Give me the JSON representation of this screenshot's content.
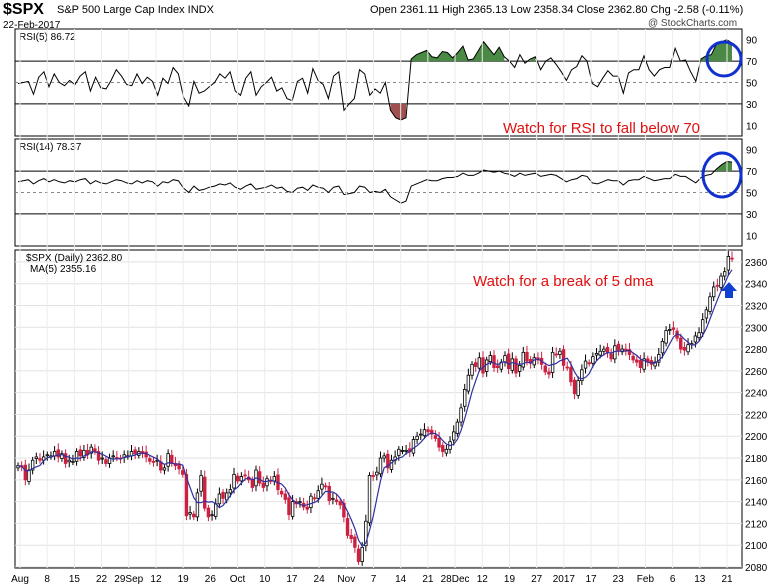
{
  "header": {
    "symbol": "$SPX",
    "description": "S&P 500 Large Cap Index  INDX",
    "date": "22-Feb-2017",
    "quote": "Open 2361.11  High 2365.13  Low 2358.34  Close 2362.80  Chg -2.58 (-0.11%)",
    "watermark": "@ StockCharts.com"
  },
  "colors": {
    "up": "#000000",
    "down": "#cc2040",
    "ma": "#3030a0",
    "annotation": "#e01010",
    "circle": "#1030d0",
    "arrow": "#1040d0",
    "overbought_fill": "#4a8a45",
    "oversold_fill": "#a05050"
  },
  "chart_data": [
    {
      "type": "line",
      "panel": "rsi5",
      "label": "RSI(5) 86.72",
      "ylim": [
        0,
        100
      ],
      "y_ticks": [
        10,
        30,
        50,
        70,
        90
      ],
      "reference_lines": [
        30,
        50,
        70
      ],
      "values": [
        49,
        50,
        51,
        39,
        55,
        60,
        46,
        58,
        50,
        47,
        52,
        48,
        56,
        60,
        42,
        55,
        45,
        44,
        52,
        62,
        56,
        48,
        47,
        58,
        49,
        55,
        51,
        38,
        54,
        49,
        64,
        58,
        36,
        28,
        51,
        40,
        42,
        46,
        50,
        58,
        54,
        60,
        42,
        38,
        54,
        60,
        38,
        46,
        50,
        55,
        42,
        45,
        35,
        33,
        51,
        54,
        40,
        63,
        52,
        48,
        35,
        56,
        60,
        24,
        30,
        35,
        62,
        58,
        38,
        44,
        40,
        50,
        24,
        17,
        15,
        17,
        72,
        76,
        78,
        80,
        74,
        73,
        79,
        78,
        73,
        78,
        84,
        71,
        72,
        80,
        88,
        82,
        76,
        83,
        74,
        70,
        64,
        76,
        68,
        72,
        74,
        62,
        70,
        73,
        67,
        60,
        52,
        62,
        65,
        75,
        70,
        49,
        46,
        54,
        61,
        56,
        56,
        40,
        59,
        62,
        62,
        75,
        62,
        56,
        62,
        64,
        64,
        82,
        70,
        71,
        60,
        51,
        72,
        75,
        76,
        86,
        88,
        90,
        86.72
      ]
    },
    {
      "type": "line",
      "panel": "rsi14",
      "label": "RSI(14) 78.37",
      "ylim": [
        0,
        100
      ],
      "y_ticks": [
        10,
        30,
        50,
        70,
        90
      ],
      "reference_lines": [
        30,
        50,
        70
      ],
      "values": [
        60,
        61,
        62,
        58,
        61,
        63,
        60,
        62,
        60,
        59,
        61,
        60,
        62,
        63,
        58,
        61,
        59,
        58,
        60,
        62,
        61,
        59,
        58,
        61,
        59,
        61,
        60,
        56,
        60,
        59,
        62,
        61,
        54,
        50,
        56,
        52,
        53,
        55,
        56,
        58,
        57,
        59,
        55,
        53,
        56,
        58,
        53,
        54,
        55,
        57,
        54,
        55,
        51,
        50,
        54,
        55,
        52,
        57,
        55,
        54,
        50,
        55,
        56,
        48,
        49,
        50,
        56,
        55,
        50,
        51,
        50,
        53,
        46,
        43,
        40,
        42,
        56,
        58,
        60,
        62,
        61,
        61,
        63,
        64,
        64,
        65,
        68,
        66,
        66,
        68,
        71,
        70,
        69,
        70,
        68,
        67,
        65,
        68,
        66,
        67,
        68,
        65,
        66,
        67,
        66,
        63,
        60,
        62,
        63,
        66,
        65,
        59,
        58,
        60,
        62,
        61,
        61,
        57,
        61,
        62,
        62,
        65,
        63,
        61,
        62,
        63,
        63,
        67,
        65,
        65,
        62,
        59,
        64,
        66,
        67,
        72,
        76,
        79,
        78.37
      ]
    },
    {
      "type": "candlestick",
      "panel": "price",
      "label": "$SPX (Daily) 2362.80",
      "ma_label": "MA(5) 2355.16",
      "ylim": [
        2080,
        2370
      ],
      "y_ticks": [
        2080,
        2100,
        2120,
        2140,
        2160,
        2180,
        2200,
        2220,
        2240,
        2260,
        2280,
        2300,
        2320,
        2340,
        2360
      ],
      "x_ticks": [
        "Aug",
        "8",
        "15",
        "22",
        "29Sep",
        "12",
        "19",
        "26",
        "Oct",
        "10",
        "17",
        "24",
        "Nov",
        "7",
        "14",
        "21",
        "28Dec",
        "12",
        "19",
        "27",
        "2017",
        "17",
        "23",
        "Feb",
        "6",
        "13",
        "21"
      ],
      "close": [
        2173,
        2172,
        2160,
        2169,
        2178,
        2181,
        2178,
        2181,
        2183,
        2182,
        2186,
        2181,
        2184,
        2175,
        2178,
        2177,
        2186,
        2182,
        2187,
        2183,
        2190,
        2186,
        2178,
        2180,
        2175,
        2180,
        2182,
        2180,
        2179,
        2183,
        2182,
        2186,
        2184,
        2186,
        2184,
        2181,
        2177,
        2176,
        2178,
        2169,
        2171,
        2184,
        2175,
        2173,
        2170,
        2165,
        2127,
        2130,
        2126,
        2148,
        2164,
        2134,
        2126,
        2128,
        2138,
        2147,
        2143,
        2148,
        2151,
        2165,
        2159,
        2163,
        2164,
        2160,
        2153,
        2169,
        2157,
        2153,
        2161,
        2159,
        2163,
        2151,
        2147,
        2142,
        2128,
        2140,
        2138,
        2140,
        2135,
        2133,
        2145,
        2143,
        2150,
        2156,
        2154,
        2141,
        2143,
        2140,
        2137,
        2126,
        2109,
        2106,
        2098,
        2085,
        2098,
        2122,
        2164,
        2163,
        2167,
        2180,
        2182,
        2171,
        2178,
        2181,
        2188,
        2187,
        2187,
        2186,
        2197,
        2200,
        2202,
        2206,
        2204,
        2202,
        2198,
        2190,
        2186,
        2188,
        2195,
        2204,
        2213,
        2226,
        2243,
        2256,
        2266,
        2264,
        2272,
        2258,
        2270,
        2274,
        2263,
        2263,
        2268,
        2274,
        2262,
        2271,
        2258,
        2265,
        2277,
        2269,
        2267,
        2272,
        2270,
        2266,
        2259,
        2257,
        2277,
        2275,
        2278,
        2265,
        2263,
        2250,
        2239,
        2251,
        2261,
        2269,
        2267,
        2273,
        2276,
        2278,
        2280,
        2277,
        2271,
        2283,
        2279,
        2280,
        2278,
        2275,
        2270,
        2268,
        2263,
        2271,
        2268,
        2266,
        2268,
        2275,
        2287,
        2297,
        2298,
        2298,
        2290,
        2280,
        2279,
        2284,
        2285,
        2292,
        2295,
        2307,
        2316,
        2328,
        2337,
        2338,
        2347,
        2351,
        2365,
        2362.8
      ]
    }
  ],
  "annotations": {
    "rsi_note": "Watch for RSI to fall below 70",
    "price_note": "Watch for a break of 5 dma"
  }
}
